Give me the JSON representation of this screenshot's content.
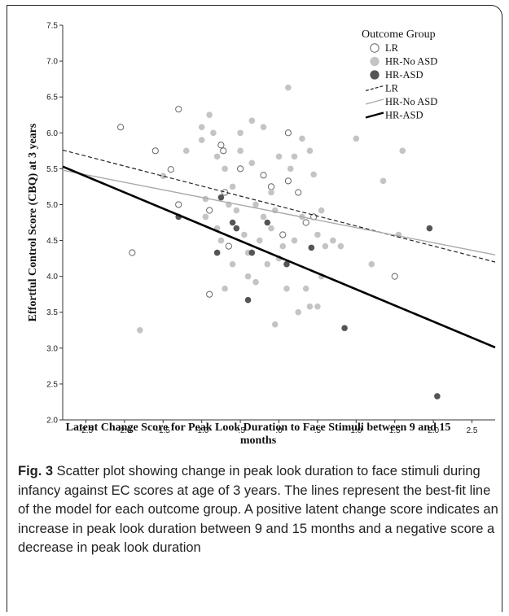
{
  "chart_data": {
    "type": "scatter",
    "xlabel": "Latent Change Score for Peak Look Duration to Face Stimuli between 9 and 15 months",
    "ylabel": "Effortful Control Score (CBQ) at 3 years",
    "xlim": [
      -2.8,
      2.8
    ],
    "ylim": [
      2.0,
      7.5
    ],
    "xticks": [
      "-2.5",
      "-2.0",
      "-1.5",
      "-1.0",
      "-.5",
      ".0",
      ".5",
      "1.0",
      "1.5",
      "2.0",
      "2.5"
    ],
    "xtick_values": [
      -2.5,
      -2.0,
      -1.5,
      -1.0,
      -0.5,
      0.0,
      0.5,
      1.0,
      1.5,
      2.0,
      2.5
    ],
    "yticks": [
      "2.0",
      "2.5",
      "3.0",
      "3.5",
      "4.0",
      "4.5",
      "5.0",
      "5.5",
      "6.0",
      "6.5",
      "7.0",
      "7.5"
    ],
    "ytick_values": [
      2.0,
      2.5,
      3.0,
      3.5,
      4.0,
      4.5,
      5.0,
      5.5,
      6.0,
      6.5,
      7.0,
      7.5
    ],
    "grid": false,
    "legend_title": "Outcome Group",
    "legend_position": "top-right",
    "series": [
      {
        "name": "LR",
        "marker": "open-circle",
        "color": "#666666",
        "points": [
          [
            -2.05,
            6.08
          ],
          [
            -1.9,
            4.33
          ],
          [
            -1.6,
            5.75
          ],
          [
            -1.4,
            5.49
          ],
          [
            -1.3,
            6.33
          ],
          [
            -1.3,
            5.0
          ],
          [
            -0.9,
            3.75
          ],
          [
            -0.9,
            4.92
          ],
          [
            -0.7,
            5.17
          ],
          [
            -0.75,
            5.83
          ],
          [
            -0.72,
            5.75
          ],
          [
            -0.5,
            5.5
          ],
          [
            -0.65,
            4.42
          ],
          [
            -0.2,
            5.41
          ],
          [
            -0.1,
            5.25
          ],
          [
            0.05,
            4.58
          ],
          [
            0.12,
            5.33
          ],
          [
            0.12,
            6.0
          ],
          [
            0.25,
            5.17
          ],
          [
            0.35,
            4.75
          ],
          [
            0.45,
            4.83
          ],
          [
            1.5,
            4.0
          ]
        ]
      },
      {
        "name": "HR-No ASD",
        "marker": "filled-circle",
        "color": "#c4c4c4",
        "points": [
          [
            -1.8,
            3.25
          ],
          [
            -1.5,
            5.4
          ],
          [
            -1.2,
            5.75
          ],
          [
            -1.0,
            6.08
          ],
          [
            -1.0,
            5.9
          ],
          [
            -0.95,
            4.83
          ],
          [
            -0.95,
            5.08
          ],
          [
            -0.9,
            6.25
          ],
          [
            -0.85,
            6.0
          ],
          [
            -0.8,
            5.67
          ],
          [
            -0.8,
            4.67
          ],
          [
            -0.75,
            4.5
          ],
          [
            -0.7,
            3.83
          ],
          [
            -0.7,
            5.5
          ],
          [
            -0.65,
            5.0
          ],
          [
            -0.6,
            4.17
          ],
          [
            -0.6,
            5.25
          ],
          [
            -0.55,
            4.92
          ],
          [
            -0.5,
            6.0
          ],
          [
            -0.5,
            5.75
          ],
          [
            -0.45,
            4.58
          ],
          [
            -0.4,
            4.33
          ],
          [
            -0.4,
            4.0
          ],
          [
            -0.35,
            5.58
          ],
          [
            -0.35,
            6.17
          ],
          [
            -0.3,
            5.0
          ],
          [
            -0.3,
            3.92
          ],
          [
            -0.25,
            4.5
          ],
          [
            -0.2,
            6.08
          ],
          [
            -0.2,
            4.83
          ],
          [
            -0.15,
            4.17
          ],
          [
            -0.1,
            5.17
          ],
          [
            -0.1,
            4.67
          ],
          [
            -0.05,
            3.33
          ],
          [
            -0.05,
            4.92
          ],
          [
            0.0,
            4.25
          ],
          [
            0.0,
            5.67
          ],
          [
            0.05,
            4.42
          ],
          [
            0.1,
            3.83
          ],
          [
            0.12,
            6.63
          ],
          [
            0.15,
            5.5
          ],
          [
            0.2,
            5.67
          ],
          [
            0.2,
            4.5
          ],
          [
            0.25,
            3.5
          ],
          [
            0.3,
            4.83
          ],
          [
            0.3,
            5.92
          ],
          [
            0.35,
            3.83
          ],
          [
            0.4,
            3.58
          ],
          [
            0.4,
            5.75
          ],
          [
            0.45,
            5.42
          ],
          [
            0.5,
            4.58
          ],
          [
            0.5,
            3.58
          ],
          [
            0.55,
            4.0
          ],
          [
            0.55,
            4.92
          ],
          [
            0.6,
            4.42
          ],
          [
            0.7,
            4.5
          ],
          [
            0.8,
            4.42
          ],
          [
            1.0,
            5.92
          ],
          [
            1.2,
            4.17
          ],
          [
            1.35,
            5.33
          ],
          [
            1.6,
            5.75
          ],
          [
            1.55,
            4.58
          ]
        ]
      },
      {
        "name": "HR-ASD",
        "marker": "filled-circle",
        "color": "#555555",
        "points": [
          [
            -1.3,
            4.83
          ],
          [
            -0.75,
            5.1
          ],
          [
            -0.8,
            4.33
          ],
          [
            -0.6,
            4.75
          ],
          [
            -0.55,
            4.67
          ],
          [
            -0.4,
            3.67
          ],
          [
            -0.35,
            4.33
          ],
          [
            -0.15,
            4.75
          ],
          [
            0.1,
            4.17
          ],
          [
            0.42,
            4.4
          ],
          [
            0.85,
            3.28
          ],
          [
            1.95,
            4.67
          ],
          [
            2.05,
            2.33
          ]
        ]
      }
    ],
    "fit_lines": [
      {
        "name": "LR",
        "style": "dashed",
        "color": "#222222",
        "x": [
          -2.8,
          2.8
        ],
        "y": [
          5.76,
          4.2
        ]
      },
      {
        "name": "HR-No ASD",
        "style": "solid",
        "color": "#aaaaaa",
        "x": [
          -2.8,
          2.8
        ],
        "y": [
          5.48,
          4.3
        ]
      },
      {
        "name": "HR-ASD",
        "style": "solid-thick",
        "color": "#000000",
        "x": [
          -2.8,
          2.8
        ],
        "y": [
          5.53,
          3.01
        ]
      }
    ]
  },
  "caption": {
    "label": "Fig. 3",
    "text": " Scatter plot showing change in peak look duration to face stimuli during infancy against EC scores at age of 3 years. The lines represent the best-fit line of the model for each outcome group. A positive latent change score indicates an increase in peak look duration between 9 and 15 months and a negative score a decrease in peak look duration"
  }
}
